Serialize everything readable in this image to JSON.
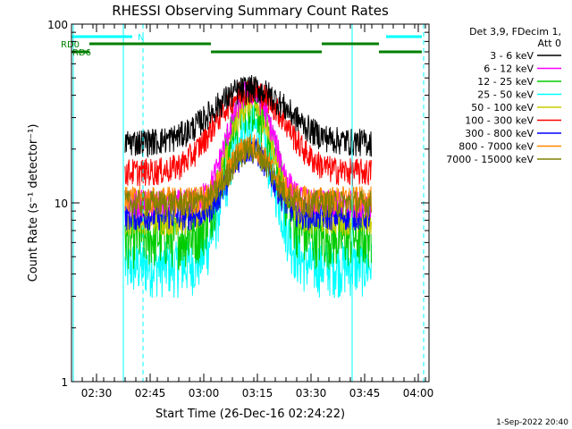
{
  "chart_data": {
    "type": "line",
    "title": "RHESSI Observing Summary Count Rates",
    "xlabel": "Start Time (26-Dec-16 02:24:22)",
    "ylabel": "Count Rate (s⁻¹ detector⁻¹)",
    "y_scale": "log",
    "ylim": [
      1,
      100
    ],
    "y_ticks": [
      {
        "value": 1,
        "label": "1"
      },
      {
        "value": 10,
        "label": "10"
      },
      {
        "value": 100,
        "label": "100"
      }
    ],
    "xlim_minutes": [
      143,
      243
    ],
    "x_ticks": [
      {
        "minutes": 150,
        "label": "02:30"
      },
      {
        "minutes": 165,
        "label": "02:45"
      },
      {
        "minutes": 180,
        "label": "03:00"
      },
      {
        "minutes": 195,
        "label": "03:15"
      },
      {
        "minutes": 210,
        "label": "03:30"
      },
      {
        "minutes": 225,
        "label": "03:45"
      },
      {
        "minutes": 240,
        "label": "04:00"
      }
    ],
    "detector_info": [
      "Det 3,9, FDecim 1,",
      "Att 0"
    ],
    "timestamp": "1-Sep-2022 20:40",
    "data_window_minutes": [
      158,
      227
    ],
    "flare_peak_minutes": 193,
    "series": [
      {
        "name": "3 - 6 keV",
        "color": "#000000",
        "background": 22,
        "peak": 44
      },
      {
        "name": "6 - 12 keV",
        "color": "#ff00ff",
        "background": 10,
        "peak": 42
      },
      {
        "name": "12 - 25 keV",
        "color": "#00cc00",
        "background": 6.5,
        "peak": 38
      },
      {
        "name": "25 - 50 keV",
        "color": "#00ffff",
        "background": 4.5,
        "peak": 27
      },
      {
        "name": "50 - 100 keV",
        "color": "#cccc00",
        "background": 8,
        "peak": 36
      },
      {
        "name": "100 - 300 keV",
        "color": "#ff0000",
        "background": 15,
        "peak": 43
      },
      {
        "name": "300 - 800 keV",
        "color": "#0000ff",
        "background": 8.5,
        "peak": 20
      },
      {
        "name": "800 - 7000 keV",
        "color": "#ff8800",
        "background": 10.5,
        "peak": 21
      },
      {
        "name": "7000 - 15000 keV",
        "color": "#808000",
        "background": 10,
        "peak": 20
      }
    ],
    "status_bars": [
      {
        "label": "N",
        "color": "#00ffff",
        "level": "top",
        "segments": [
          [
            143,
            160
          ],
          [
            231,
            241
          ]
        ]
      },
      {
        "label": "RD0",
        "color": "#008000",
        "level": "upper",
        "segments": [
          [
            148,
            182
          ],
          [
            213,
            229
          ]
        ]
      },
      {
        "label": "RD6",
        "color": "#008000",
        "level": "lower",
        "segments": [
          [
            143,
            148
          ],
          [
            182,
            213
          ],
          [
            229,
            241
          ]
        ]
      }
    ],
    "vertical_lines": [
      {
        "minutes": 143.5,
        "style": "solid",
        "color": "#00ffff"
      },
      {
        "minutes": 157.5,
        "style": "solid",
        "color": "#00ffff"
      },
      {
        "minutes": 163,
        "style": "dashed",
        "color": "#00ffff"
      },
      {
        "minutes": 221.5,
        "style": "solid",
        "color": "#00ffff"
      },
      {
        "minutes": 241.5,
        "style": "dashed",
        "color": "#00ffff"
      }
    ],
    "grid": false,
    "legend_position": "right"
  }
}
